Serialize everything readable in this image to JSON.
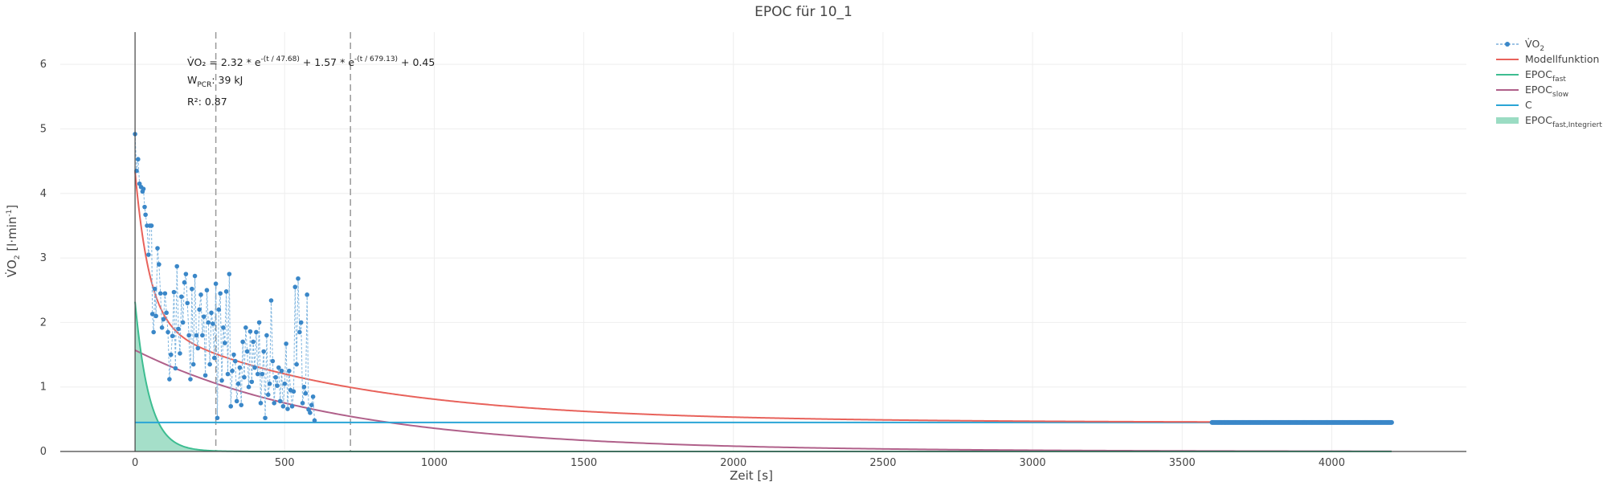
{
  "chart_data": {
    "type": "scatter",
    "title": "EPOC für 10_1",
    "xlabel": "Zeit [s]",
    "ylabel": {
      "main": "V̇O",
      "sub": "2",
      "rest": " [l·min",
      "sup": "-1",
      "end": "]"
    },
    "xlim": [
      -250,
      4450
    ],
    "ylim": [
      0,
      6.5
    ],
    "xticks": [
      0,
      500,
      1000,
      1500,
      2000,
      2500,
      3000,
      3500,
      4000
    ],
    "yticks": [
      0,
      1,
      2,
      3,
      4,
      5,
      6
    ],
    "grid": true,
    "legend_position": "top-right",
    "model": {
      "a1": 2.32,
      "tau1": 47.68,
      "a2": 1.57,
      "tau2": 679.13,
      "c": 0.45,
      "t_end": 4200
    },
    "vlines": [
      270,
      720
    ],
    "series": [
      {
        "key": "vo2",
        "name": "V̇O₂",
        "legend": {
          "main": "V̇O",
          "sub": "2"
        },
        "color": "#3a87c8",
        "style": "dashed-markers",
        "points": [
          [
            0,
            4.92
          ],
          [
            5,
            4.35
          ],
          [
            10,
            4.53
          ],
          [
            15,
            4.15
          ],
          [
            20,
            4.1
          ],
          [
            25,
            4.03
          ],
          [
            28,
            4.07
          ],
          [
            32,
            3.79
          ],
          [
            35,
            3.67
          ],
          [
            40,
            3.5
          ],
          [
            45,
            3.05
          ],
          [
            50,
            3.5
          ],
          [
            55,
            3.5
          ],
          [
            58,
            2.13
          ],
          [
            62,
            1.85
          ],
          [
            66,
            2.52
          ],
          [
            70,
            2.1
          ],
          [
            75,
            3.15
          ],
          [
            80,
            2.9
          ],
          [
            85,
            2.45
          ],
          [
            90,
            1.92
          ],
          [
            95,
            2.05
          ],
          [
            100,
            2.45
          ],
          [
            105,
            2.15
          ],
          [
            110,
            1.85
          ],
          [
            115,
            1.12
          ],
          [
            120,
            1.5
          ],
          [
            125,
            1.79
          ],
          [
            130,
            2.47
          ],
          [
            135,
            1.29
          ],
          [
            140,
            2.87
          ],
          [
            145,
            1.9
          ],
          [
            150,
            1.52
          ],
          [
            155,
            2.4
          ],
          [
            160,
            2.0
          ],
          [
            165,
            2.62
          ],
          [
            170,
            2.75
          ],
          [
            175,
            2.3
          ],
          [
            180,
            1.8
          ],
          [
            185,
            1.12
          ],
          [
            190,
            2.52
          ],
          [
            195,
            1.35
          ],
          [
            200,
            2.72
          ],
          [
            205,
            1.8
          ],
          [
            210,
            1.6
          ],
          [
            215,
            2.2
          ],
          [
            220,
            2.43
          ],
          [
            225,
            1.8
          ],
          [
            230,
            2.09
          ],
          [
            235,
            1.18
          ],
          [
            240,
            2.5
          ],
          [
            245,
            2.0
          ],
          [
            250,
            1.35
          ],
          [
            255,
            2.15
          ],
          [
            260,
            1.98
          ],
          [
            265,
            1.45
          ],
          [
            270,
            2.6
          ],
          [
            275,
            0.52
          ],
          [
            280,
            2.2
          ],
          [
            285,
            2.45
          ],
          [
            290,
            1.1
          ],
          [
            295,
            1.92
          ],
          [
            300,
            1.68
          ],
          [
            305,
            2.48
          ],
          [
            310,
            1.2
          ],
          [
            315,
            2.75
          ],
          [
            320,
            0.7
          ],
          [
            325,
            1.25
          ],
          [
            330,
            1.5
          ],
          [
            335,
            1.4
          ],
          [
            340,
            0.78
          ],
          [
            345,
            1.05
          ],
          [
            350,
            1.3
          ],
          [
            355,
            0.72
          ],
          [
            360,
            1.7
          ],
          [
            365,
            1.15
          ],
          [
            370,
            1.92
          ],
          [
            375,
            1.55
          ],
          [
            380,
            1.0
          ],
          [
            385,
            1.86
          ],
          [
            390,
            1.08
          ],
          [
            395,
            1.7
          ],
          [
            400,
            1.3
          ],
          [
            405,
            1.85
          ],
          [
            410,
            1.2
          ],
          [
            415,
            2.0
          ],
          [
            420,
            0.75
          ],
          [
            425,
            1.2
          ],
          [
            430,
            1.55
          ],
          [
            435,
            0.52
          ],
          [
            440,
            1.8
          ],
          [
            445,
            0.88
          ],
          [
            450,
            1.05
          ],
          [
            455,
            2.34
          ],
          [
            460,
            1.4
          ],
          [
            465,
            0.75
          ],
          [
            470,
            1.15
          ],
          [
            475,
            1.02
          ],
          [
            480,
            1.3
          ],
          [
            485,
            0.78
          ],
          [
            490,
            1.25
          ],
          [
            495,
            0.7
          ],
          [
            500,
            1.05
          ],
          [
            505,
            1.67
          ],
          [
            510,
            0.66
          ],
          [
            515,
            1.25
          ],
          [
            520,
            0.95
          ],
          [
            525,
            0.7
          ],
          [
            530,
            0.93
          ],
          [
            535,
            2.55
          ],
          [
            540,
            1.35
          ],
          [
            545,
            2.68
          ],
          [
            550,
            1.85
          ],
          [
            555,
            2.0
          ],
          [
            560,
            0.75
          ],
          [
            565,
            1.0
          ],
          [
            570,
            0.9
          ],
          [
            575,
            2.43
          ],
          [
            580,
            0.65
          ],
          [
            585,
            0.6
          ],
          [
            590,
            0.72
          ],
          [
            595,
            0.85
          ],
          [
            600,
            0.48
          ]
        ]
      },
      {
        "key": "model",
        "name": "Modellfunktion",
        "legend": {
          "main": "Modellfunktion"
        },
        "color": "#e8625b",
        "style": "line"
      },
      {
        "key": "fast",
        "name": "EPOC fast",
        "legend": {
          "main": "EPOC",
          "sub": "fast"
        },
        "color": "#3dbd91",
        "style": "line"
      },
      {
        "key": "slow",
        "name": "EPOC slow",
        "legend": {
          "main": "EPOC",
          "sub": "slow"
        },
        "color": "#b0608a",
        "style": "line"
      },
      {
        "key": "c",
        "name": "C",
        "legend": {
          "main": "C"
        },
        "color": "#2aa5d6",
        "style": "line"
      },
      {
        "key": "fast_int",
        "name": "EPOC fast,Integriert",
        "legend": {
          "main": "EPOC",
          "sub": "fast,Integriert"
        },
        "color": "#9bdcc3",
        "style": "fill"
      }
    ],
    "baseline_markers": {
      "x_from": 3600,
      "x_to": 4200,
      "y": 0.45,
      "color": "#3a87c8"
    },
    "annotations": {
      "equation": {
        "p1": "V̇O₂ = 2.32 * e",
        "e1": "-(t / 47.68)",
        "p2": " + 1.57 * e",
        "e2": "-(t / 679.13)",
        "p3": " + 0.45"
      },
      "work": {
        "main": "W",
        "sub": "PCR",
        "rest": ": 39 kJ"
      },
      "r2": "R²: 0.87"
    }
  }
}
